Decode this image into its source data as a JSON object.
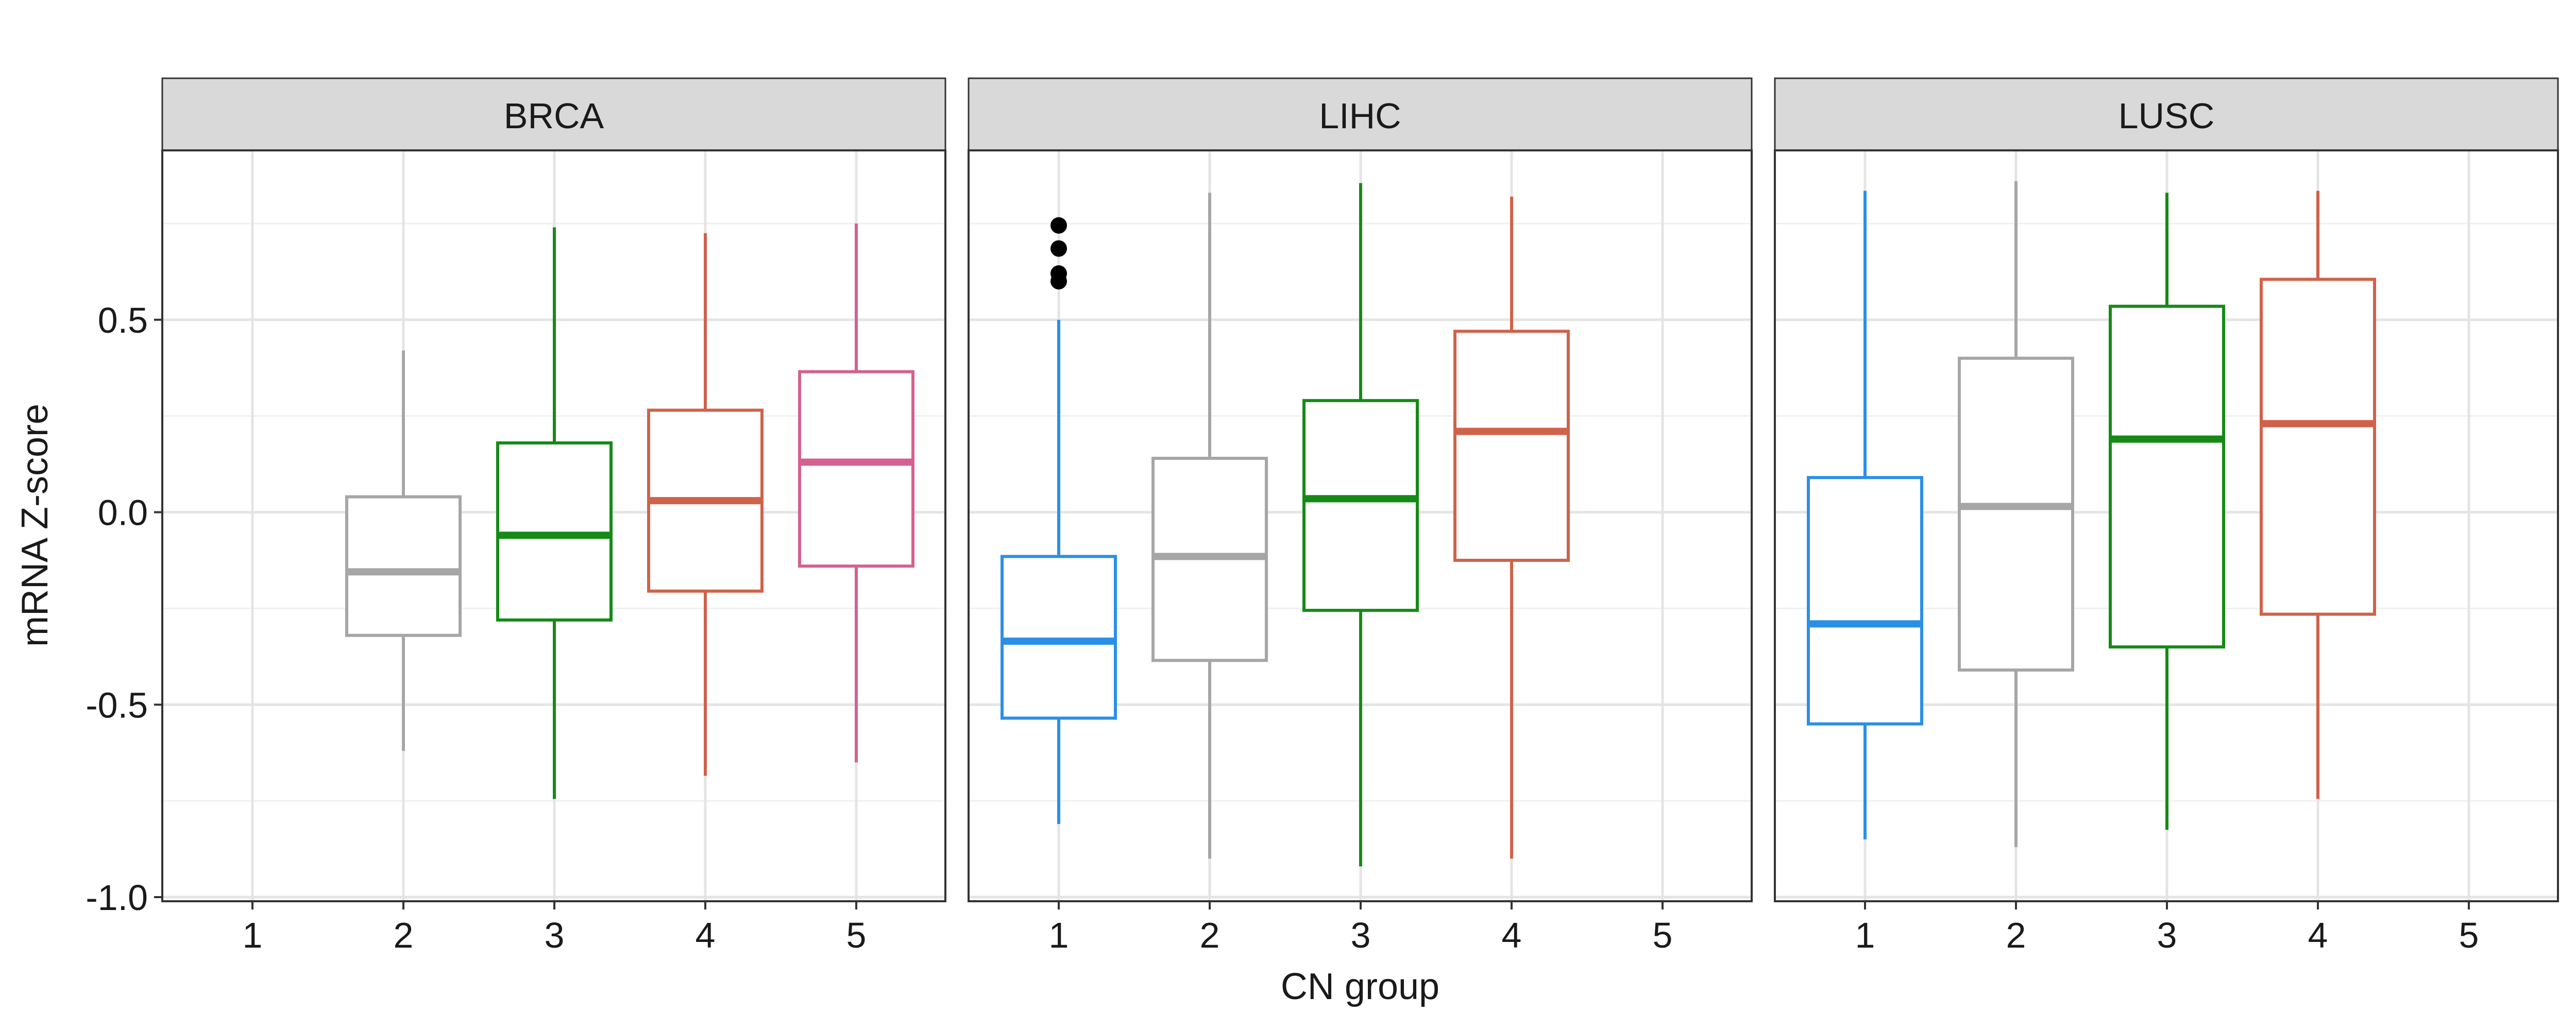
{
  "chart_data": {
    "type": "boxplot",
    "xlabel": "CN group",
    "ylabel": "mRNA Z-score",
    "ylim": [
      -1.0,
      0.94
    ],
    "y_ticks": [
      -1.0,
      -0.5,
      0.0,
      0.5
    ],
    "y_tick_labels": [
      "-1.0",
      "-0.5",
      "0.0",
      "0.5"
    ],
    "x_categories": [
      "1",
      "2",
      "3",
      "4",
      "5"
    ],
    "grid": true,
    "group_colors": {
      "1": "#2b8fe6",
      "2": "#a6a6a6",
      "3": "#168a16",
      "4": "#d0624a",
      "5": "#d4618f"
    },
    "panels": [
      {
        "label": "BRCA",
        "boxes": [
          {
            "group": "2",
            "whisker_low": -0.62,
            "q1": -0.32,
            "median": -0.155,
            "q3": 0.04,
            "whisker_high": 0.42
          },
          {
            "group": "3",
            "whisker_low": -0.745,
            "q1": -0.28,
            "median": -0.06,
            "q3": 0.18,
            "whisker_high": 0.74
          },
          {
            "group": "4",
            "whisker_low": -0.685,
            "q1": -0.205,
            "median": 0.03,
            "q3": 0.265,
            "whisker_high": 0.725
          },
          {
            "group": "5",
            "whisker_low": -0.65,
            "q1": -0.14,
            "median": 0.13,
            "q3": 0.365,
            "whisker_high": 0.75
          }
        ]
      },
      {
        "label": "LIHC",
        "boxes": [
          {
            "group": "1",
            "whisker_low": -0.81,
            "q1": -0.535,
            "median": -0.335,
            "q3": -0.115,
            "whisker_high": 0.5,
            "outliers": [
              0.6,
              0.62,
              0.685,
              0.745
            ]
          },
          {
            "group": "2",
            "whisker_low": -0.9,
            "q1": -0.385,
            "median": -0.115,
            "q3": 0.14,
            "whisker_high": 0.83
          },
          {
            "group": "3",
            "whisker_low": -0.92,
            "q1": -0.255,
            "median": 0.035,
            "q3": 0.29,
            "whisker_high": 0.855
          },
          {
            "group": "4",
            "whisker_low": -0.9,
            "q1": -0.125,
            "median": 0.21,
            "q3": 0.47,
            "whisker_high": 0.82
          }
        ]
      },
      {
        "label": "LUSC",
        "boxes": [
          {
            "group": "1",
            "whisker_low": -0.85,
            "q1": -0.55,
            "median": -0.29,
            "q3": 0.09,
            "whisker_high": 0.835
          },
          {
            "group": "2",
            "whisker_low": -0.87,
            "q1": -0.41,
            "median": 0.015,
            "q3": 0.4,
            "whisker_high": 0.86
          },
          {
            "group": "3",
            "whisker_low": -0.825,
            "q1": -0.35,
            "median": 0.19,
            "q3": 0.535,
            "whisker_high": 0.83
          },
          {
            "group": "4",
            "whisker_low": -0.745,
            "q1": -0.265,
            "median": 0.23,
            "q3": 0.605,
            "whisker_high": 0.835
          }
        ]
      }
    ]
  }
}
